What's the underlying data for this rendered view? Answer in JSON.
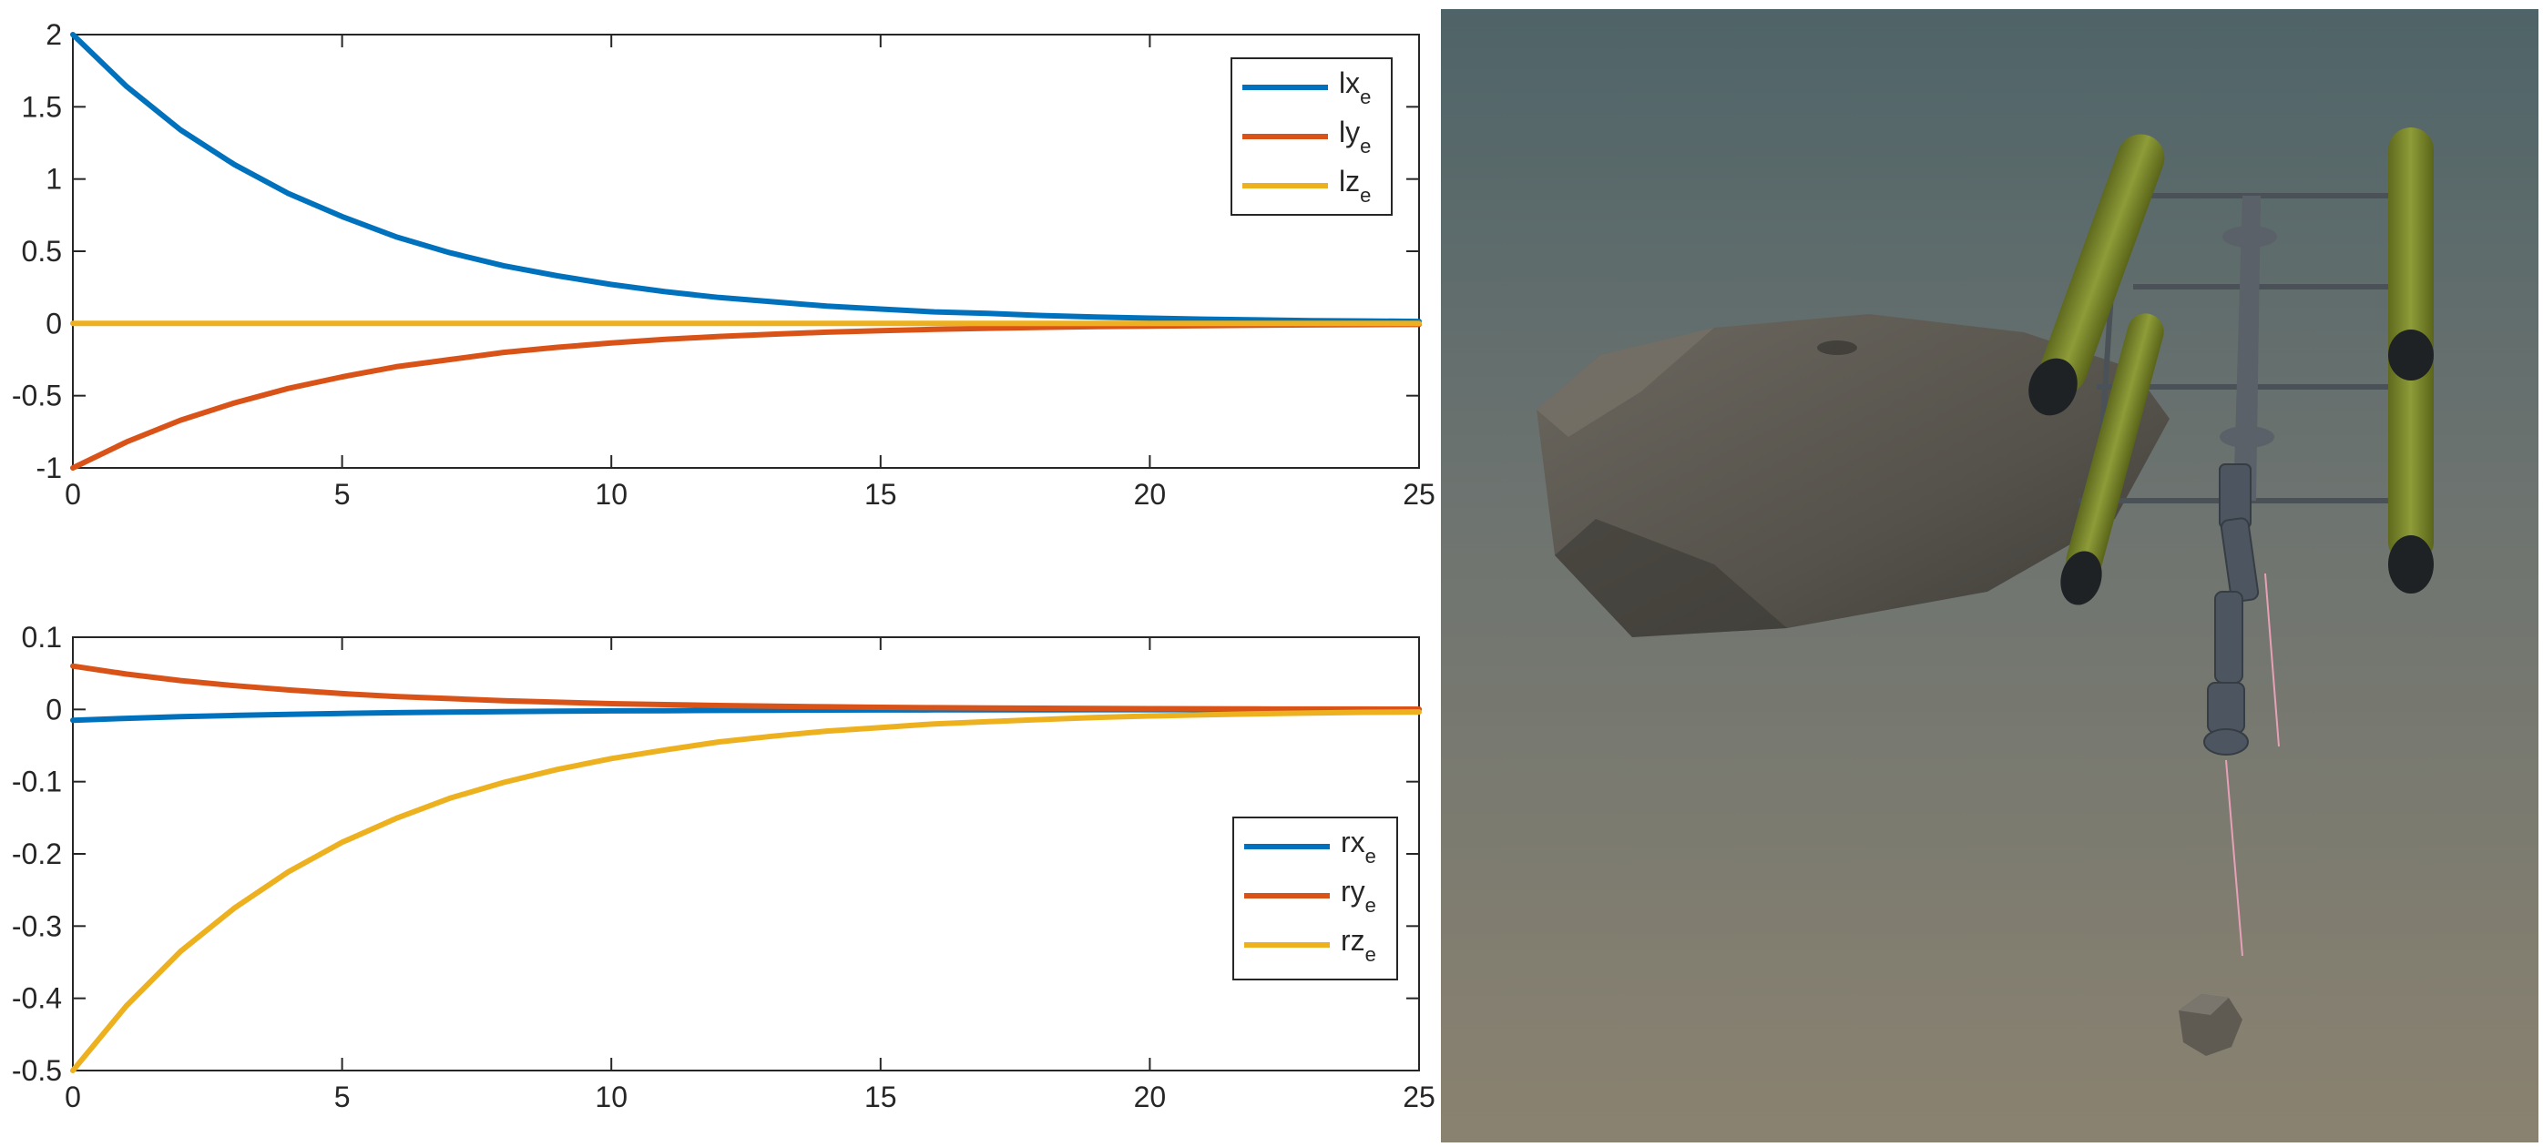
{
  "chart_data": [
    {
      "type": "line",
      "title": "",
      "xlabel": "",
      "ylabel": "",
      "xlim": [
        0,
        25
      ],
      "ylim": [
        -1,
        2
      ],
      "xticks": [
        0,
        5,
        10,
        15,
        20,
        25
      ],
      "yticks": [
        -1,
        -0.5,
        0,
        0.5,
        1,
        1.5,
        2
      ],
      "xtick_labels": [
        "0",
        "5",
        "10",
        "15",
        "20",
        "25"
      ],
      "ytick_labels": [
        "-1",
        "-0.5",
        "0",
        "0.5",
        "1",
        "1.5",
        "2"
      ],
      "grid": false,
      "legend_position": "top-right",
      "x": [
        0,
        1,
        2,
        3,
        4,
        5,
        6,
        7,
        8,
        9,
        10,
        11,
        12,
        13,
        14,
        15,
        16,
        17,
        18,
        19,
        20,
        21,
        22,
        23,
        24,
        25
      ],
      "series": [
        {
          "name": "lx",
          "name_sub": "e",
          "color": "#0072BD",
          "values": [
            2.0,
            1.64,
            1.34,
            1.1,
            0.9,
            0.74,
            0.6,
            0.49,
            0.4,
            0.33,
            0.27,
            0.22,
            0.18,
            0.15,
            0.12,
            0.1,
            0.08,
            0.07,
            0.055,
            0.045,
            0.037,
            0.03,
            0.025,
            0.02,
            0.017,
            0.014
          ]
        },
        {
          "name": "ly",
          "name_sub": "e",
          "color": "#D95319",
          "values": [
            -1.0,
            -0.82,
            -0.67,
            -0.55,
            -0.45,
            -0.37,
            -0.3,
            -0.25,
            -0.2,
            -0.165,
            -0.135,
            -0.11,
            -0.09,
            -0.074,
            -0.06,
            -0.05,
            -0.041,
            -0.033,
            -0.027,
            -0.022,
            -0.018,
            -0.015,
            -0.012,
            -0.01,
            -0.008,
            -0.007
          ]
        },
        {
          "name": "lz",
          "name_sub": "e",
          "color": "#EDB120",
          "values": [
            0,
            0,
            0,
            0,
            0,
            0,
            0,
            0,
            0,
            0,
            0,
            0,
            0,
            0,
            0,
            0,
            0,
            0,
            0,
            0,
            0,
            0,
            0,
            0,
            0,
            0
          ]
        }
      ]
    },
    {
      "type": "line",
      "title": "",
      "xlabel": "",
      "ylabel": "",
      "xlim": [
        0,
        25
      ],
      "ylim": [
        -0.5,
        0.1
      ],
      "xticks": [
        0,
        5,
        10,
        15,
        20,
        25
      ],
      "yticks": [
        -0.5,
        -0.4,
        -0.3,
        -0.2,
        -0.1,
        0,
        0.1
      ],
      "xtick_labels": [
        "0",
        "5",
        "10",
        "15",
        "20",
        "25"
      ],
      "ytick_labels": [
        "-0.5",
        "-0.4",
        "-0.3",
        "-0.2",
        "-0.1",
        "0",
        "0.1"
      ],
      "grid": false,
      "legend_position": "lower-right",
      "x": [
        0,
        1,
        2,
        3,
        4,
        5,
        6,
        7,
        8,
        9,
        10,
        11,
        12,
        13,
        14,
        15,
        16,
        17,
        18,
        19,
        20,
        21,
        22,
        23,
        24,
        25
      ],
      "series": [
        {
          "name": "rx",
          "name_sub": "e",
          "color": "#0072BD",
          "values": [
            -0.015,
            -0.0123,
            -0.01,
            -0.0083,
            -0.0068,
            -0.0055,
            -0.0045,
            -0.0037,
            -0.003,
            -0.0025,
            -0.002,
            -0.0017,
            -0.0014,
            -0.0011,
            -0.0009,
            -0.0007,
            -0.0006,
            -0.0005,
            -0.0004,
            -0.0003,
            -0.0003,
            -0.0002,
            -0.0002,
            -0.0002,
            -0.0001,
            -0.0001
          ]
        },
        {
          "name": "ry",
          "name_sub": "e",
          "color": "#D95319",
          "values": [
            0.06,
            0.049,
            0.04,
            0.033,
            0.027,
            0.022,
            0.018,
            0.015,
            0.012,
            0.01,
            0.008,
            0.0067,
            0.0054,
            0.0045,
            0.0037,
            0.003,
            0.0025,
            0.002,
            0.0017,
            0.0013,
            0.0011,
            0.0009,
            0.0007,
            0.0006,
            0.0005,
            0.0004
          ]
        },
        {
          "name": "rz",
          "name_sub": "e",
          "color": "#EDB120",
          "values": [
            -0.5,
            -0.41,
            -0.335,
            -0.275,
            -0.225,
            -0.184,
            -0.151,
            -0.123,
            -0.101,
            -0.083,
            -0.068,
            -0.056,
            -0.045,
            -0.037,
            -0.03,
            -0.025,
            -0.02,
            -0.017,
            -0.014,
            -0.011,
            -0.009,
            -0.0075,
            -0.006,
            -0.005,
            -0.004,
            -0.0035
          ]
        }
      ]
    }
  ],
  "scene": {
    "description_colors": {
      "water_top": "#4f6468",
      "water_bottom": "#8a8270",
      "rock": "#5b5750",
      "float": "#7d8a2e",
      "frame": "#4a5258",
      "laser": "#e8a0b8"
    }
  }
}
